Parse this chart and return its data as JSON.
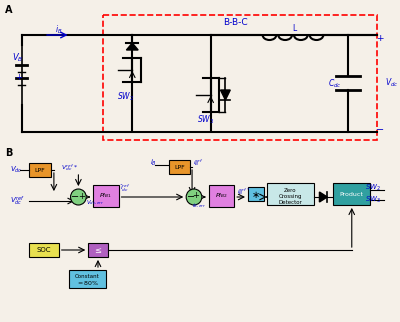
{
  "fig_width": 4.0,
  "fig_height": 3.22,
  "dpi": 100,
  "bg_color": "#f5f0e8",
  "label_A": "A",
  "label_B": "B",
  "circuit_label": "B-B-C",
  "blue": "#0000cc",
  "orange_box": "#e8952a",
  "pink_box": "#e080e0",
  "green_circle": "#80d080",
  "yellow_box": "#e8e050",
  "purple_box": "#b060c0",
  "teal_box": "#30a0a0",
  "cyan_box": "#60c0e0",
  "light_gray": "#f0f0f0"
}
